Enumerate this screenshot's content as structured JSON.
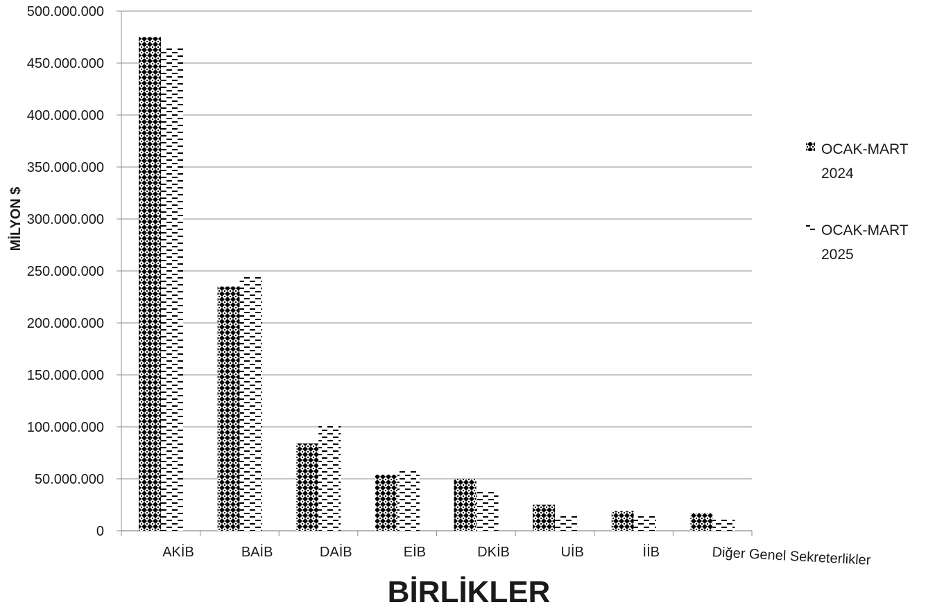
{
  "chart_data": {
    "type": "bar",
    "title": "",
    "xlabel": "BİRLİKLER",
    "ylabel": "MİLYON $",
    "ylim": [
      0,
      500000000
    ],
    "y_ticks": [
      "0",
      "50.000.000",
      "100.000.000",
      "150.000.000",
      "200.000.000",
      "250.000.000",
      "300.000.000",
      "350.000.000",
      "400.000.000",
      "450.000.000",
      "500.000.000"
    ],
    "categories": [
      "AKİB",
      "BAİB",
      "DAİB",
      "EİB",
      "DKİB",
      "UİB",
      "İİB",
      "Diğer Genel Sekreterlikler"
    ],
    "series": [
      {
        "name": "OCAK-MART 2024",
        "pattern": "crosshatch",
        "values": [
          475000000,
          235000000,
          84000000,
          54000000,
          50000000,
          25000000,
          19000000,
          17000000
        ]
      },
      {
        "name": "OCAK-MART 2025",
        "pattern": "dashes",
        "values": [
          465000000,
          246000000,
          102000000,
          59000000,
          38000000,
          16000000,
          16000000,
          11000000
        ]
      }
    ],
    "legend_position": "right",
    "grid": true,
    "colors": {
      "bar": "#000000",
      "grid": "#8c8c8c",
      "axis": "#8c8c8c",
      "text": "#1a1a1a"
    }
  }
}
